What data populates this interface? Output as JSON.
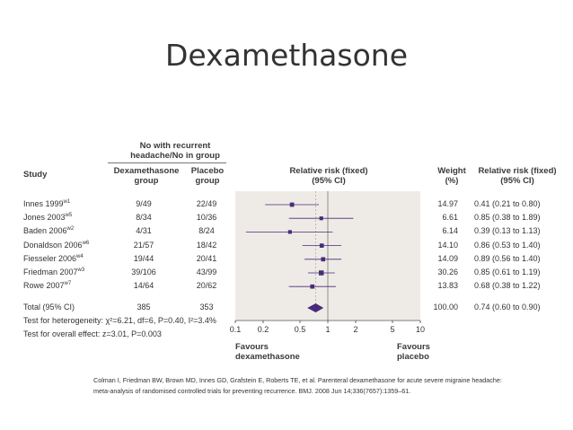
{
  "slide": {
    "title": "Dexamethasone",
    "citation": "Colman I, Friedman BW, Brown MD, Innes GD, Grafstein E, Roberts TE, et al. Parenteral dexamethasone for acute severe migraine headache: meta-analysis of randomised controlled trials for preventing recurrence. BMJ. 2008 Jun 14;336(7657):1359–61."
  },
  "table": {
    "header_group": "No with recurrent headache/No in group",
    "col_study": "Study",
    "col_dex": "Dexamethasone group",
    "col_placebo": "Placebo group",
    "col_rr": "Relative risk (fixed) (95% CI)",
    "col_weight": "Weight (%)",
    "col_rr_ci": "Relative risk (fixed) (95% CI)",
    "rows": [
      {
        "study": "Innes 1999",
        "ref": "w1",
        "dex": "9/49",
        "placebo": "22/49",
        "weight": "14.97",
        "rr_text": "0.41 (0.21 to 0.80)"
      },
      {
        "study": "Jones 2003",
        "ref": "w5",
        "dex": "8/34",
        "placebo": "10/36",
        "weight": "6.61",
        "rr_text": "0.85 (0.38 to 1.89)"
      },
      {
        "study": "Baden 2006",
        "ref": "w2",
        "dex": "4/31",
        "placebo": "8/24",
        "weight": "6.14",
        "rr_text": "0.39 (0.13 to 1.13)"
      },
      {
        "study": "Donaldson 2006",
        "ref": "w6",
        "dex": "21/57",
        "placebo": "18/42",
        "weight": "14.10",
        "rr_text": "0.86 (0.53 to 1.40)"
      },
      {
        "study": "Fiesseler 2006",
        "ref": "w4",
        "dex": "19/44",
        "placebo": "20/41",
        "weight": "14.09",
        "rr_text": "0.89 (0.56 to 1.40)"
      },
      {
        "study": "Friedman 2007",
        "ref": "w3",
        "dex": "39/106",
        "placebo": "43/99",
        "weight": "30.26",
        "rr_text": "0.85 (0.61 to 1.19)"
      },
      {
        "study": "Rowe 2007",
        "ref": "w7",
        "dex": "14/64",
        "placebo": "20/62",
        "weight": "13.83",
        "rr_text": "0.68 (0.38 to 1.22)"
      }
    ],
    "total": {
      "label": "Total (95% CI)",
      "dex": "385",
      "placebo": "353",
      "weight": "100.00",
      "rr_text": "0.74 (0.60 to 0.90)"
    },
    "heterogeneity": "Test for heterogeneity: χ²=6.21, df=6, P=0.40, I²=3.4%",
    "overall_effect": "Test for overall effect: z=3.01, P=0.003"
  },
  "chart_data": {
    "type": "scatter",
    "subtype": "forest_plot",
    "title": "Relative risk (fixed) (95% CI)",
    "x_scale": "log",
    "xlim": [
      0.1,
      10
    ],
    "ticks": [
      0.1,
      0.2,
      0.5,
      1,
      2,
      5,
      10
    ],
    "tick_labels": [
      "0.1",
      "0.2",
      "0.5",
      "1",
      "2",
      "5",
      "10"
    ],
    "reference_line": 1,
    "favours_left": "Favours dexamethasone",
    "favours_right": "Favours placebo",
    "series": [
      {
        "studies": [
          "Innes 1999",
          "Jones 2003",
          "Baden 2006",
          "Donaldson 2006",
          "Fiesseler 2006",
          "Friedman 2007",
          "Rowe 2007"
        ],
        "rr": [
          0.41,
          0.85,
          0.39,
          0.86,
          0.89,
          0.85,
          0.68
        ],
        "ci_low": [
          0.21,
          0.38,
          0.13,
          0.53,
          0.56,
          0.61,
          0.38
        ],
        "ci_high": [
          0.8,
          1.89,
          1.13,
          1.4,
          1.4,
          1.19,
          1.22
        ],
        "weight": [
          14.97,
          6.61,
          6.14,
          14.1,
          14.09,
          30.26,
          13.83
        ]
      }
    ],
    "pooled": {
      "rr": 0.74,
      "ci_low": 0.6,
      "ci_high": 0.9
    }
  },
  "colors": {
    "marker": "#4a2a7a",
    "panel": "#eeebe6",
    "text": "#3a3a3a"
  }
}
